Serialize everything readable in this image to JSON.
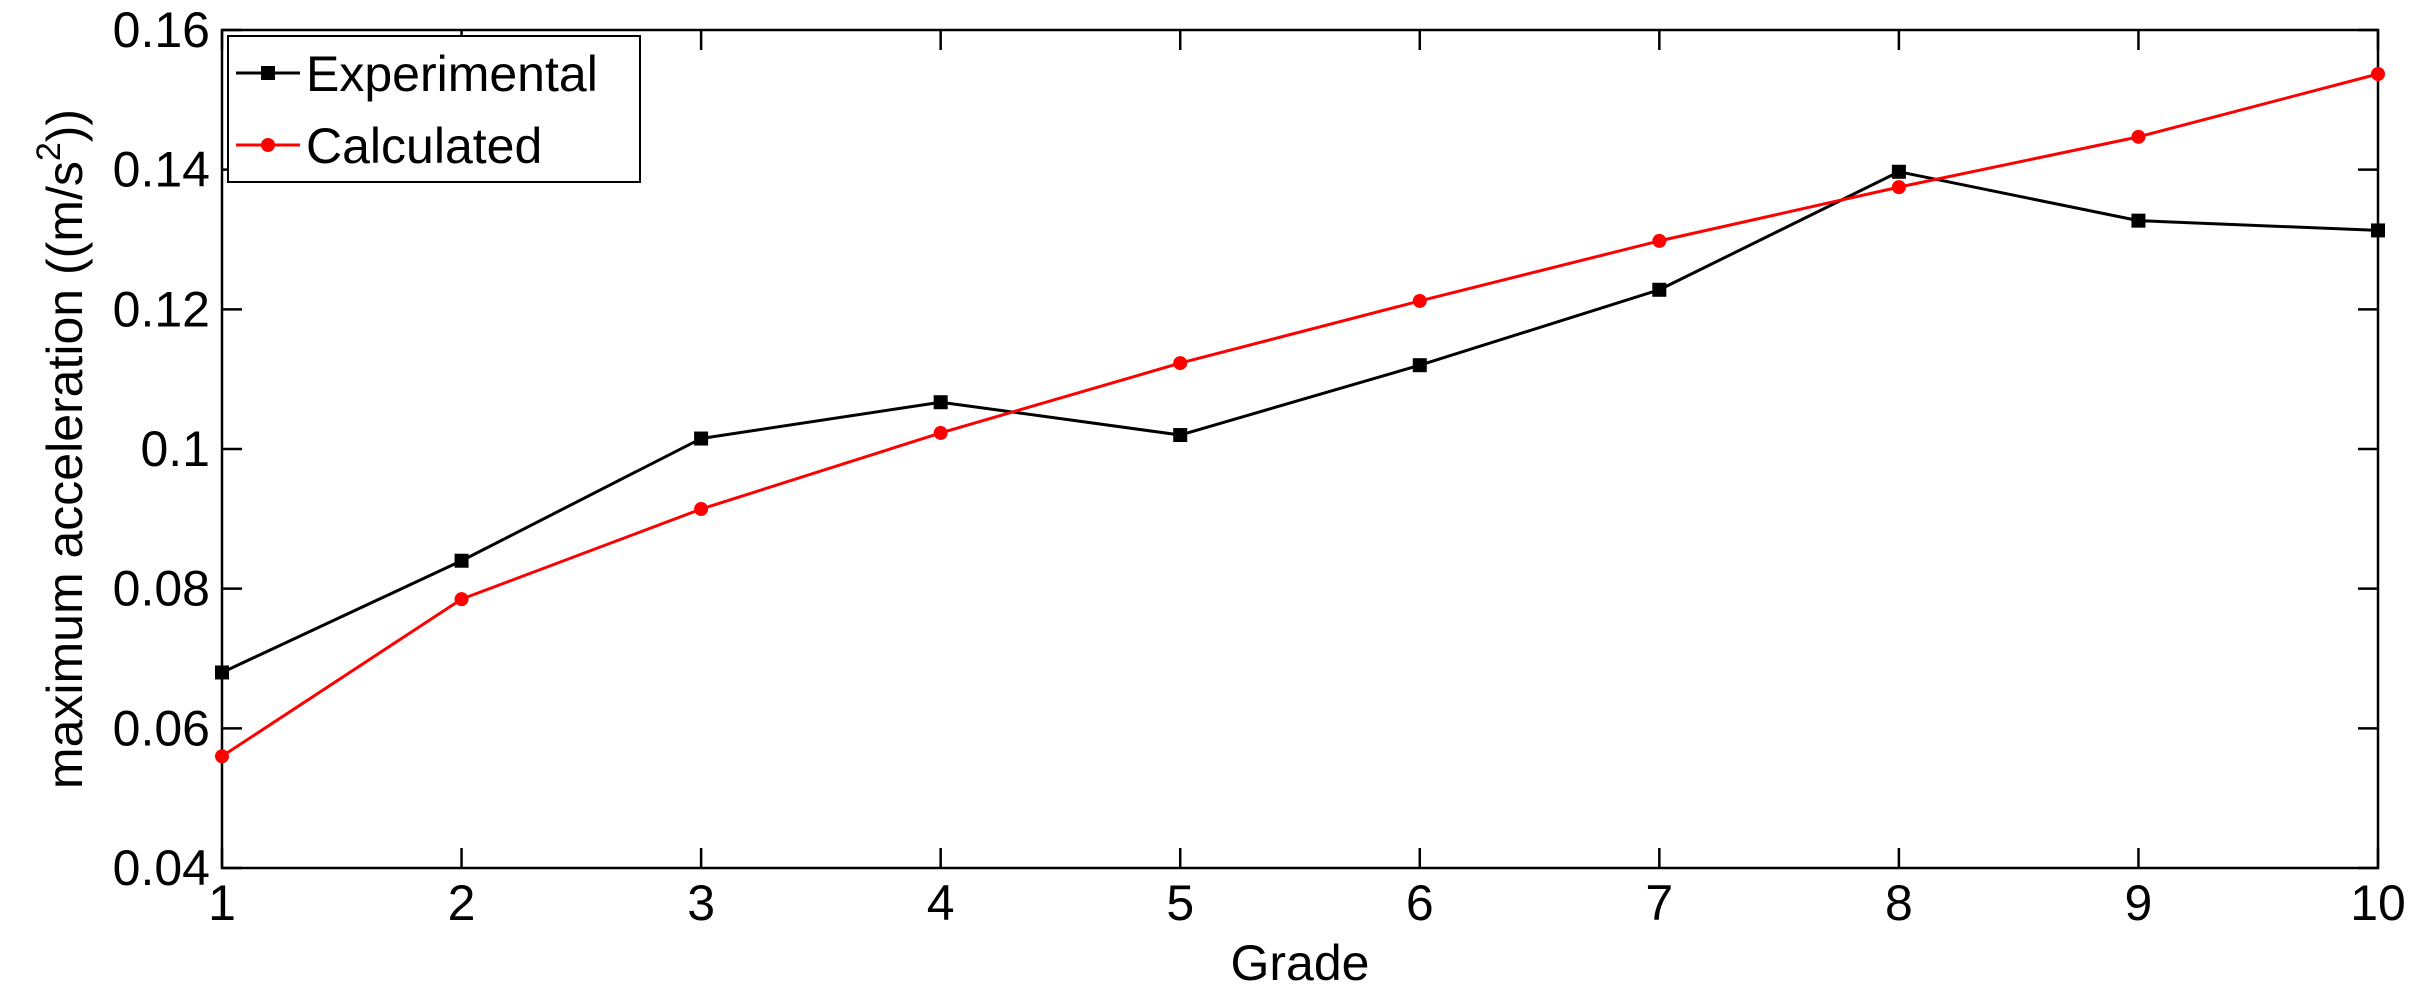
{
  "chart_data": {
    "type": "line",
    "title": "",
    "xlabel": "Grade",
    "ylabel": "maximum acceleration  ((m/s",
    "ylabel_superscript": "2",
    "ylabel_suffix": "))",
    "x": [
      1,
      2,
      3,
      4,
      5,
      6,
      7,
      8,
      9,
      10
    ],
    "xlim": [
      1,
      10
    ],
    "ylim": [
      0.04,
      0.16
    ],
    "xticks": [
      1,
      2,
      3,
      4,
      5,
      6,
      7,
      8,
      9,
      10
    ],
    "xtick_labels": [
      "1",
      "2",
      "3",
      "4",
      "5",
      "6",
      "7",
      "8",
      "9",
      "10"
    ],
    "yticks": [
      0.04,
      0.06,
      0.08,
      0.1,
      0.12,
      0.14,
      0.16
    ],
    "ytick_labels": [
      "0.04",
      "0.06",
      "0.08",
      "0.1",
      "0.12",
      "0.14",
      "0.16"
    ],
    "grid": false,
    "legend_position": "top-left",
    "series": [
      {
        "name": "Experimental",
        "color": "#000000",
        "marker": "square",
        "values": [
          0.068,
          0.084,
          0.1015,
          0.1067,
          0.102,
          0.112,
          0.1228,
          0.1397,
          0.1327,
          0.1313
        ]
      },
      {
        "name": "Calculated",
        "color": "#ff0000",
        "marker": "circle",
        "values": [
          0.056,
          0.0785,
          0.0914,
          0.1023,
          0.1123,
          0.1212,
          0.1298,
          0.1375,
          0.1447,
          0.1537
        ]
      }
    ]
  }
}
